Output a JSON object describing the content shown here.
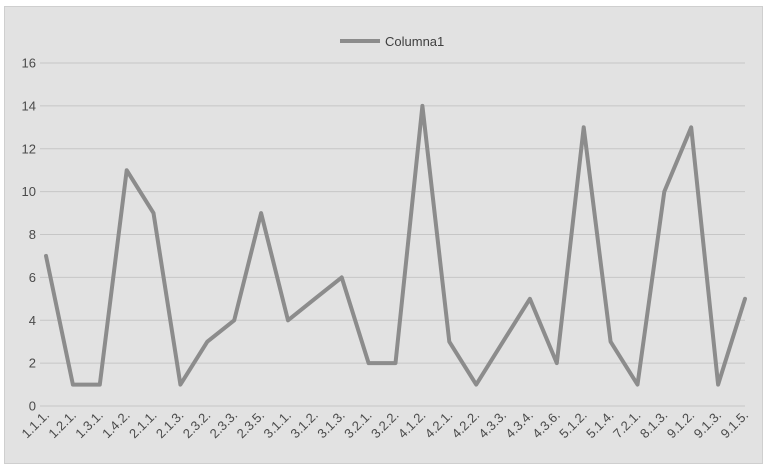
{
  "chart_data": {
    "type": "line",
    "categories": [
      "1.1.1.",
      "1.2.1.",
      "1.3.1.",
      "1.4.2.",
      "2.1.1.",
      "2.1.3.",
      "2.3.2.",
      "2.3.3.",
      "2.3.5.",
      "3.1.1.",
      "3.1.2.",
      "3.1.3.",
      "3.2.1.",
      "3.2.2.",
      "4.1.2.",
      "4.2.1.",
      "4.2.2.",
      "4.3.3.",
      "4.3.4.",
      "4.3.6.",
      "5.1.2.",
      "5.1.4.",
      "7.2.1.",
      "8.1.3.",
      "9.1.2.",
      "9.1.3.",
      "9.1.5."
    ],
    "series": [
      {
        "name": "Columna1",
        "values": [
          7,
          1,
          1,
          11,
          9,
          1,
          3,
          4,
          9,
          4,
          5,
          6,
          2,
          2,
          14,
          3,
          1,
          3,
          5,
          2,
          13,
          3,
          1,
          10,
          13,
          1,
          5
        ]
      }
    ],
    "title": "",
    "xlabel": "",
    "ylabel": "",
    "ylim": [
      0,
      16
    ],
    "yticks": [
      0,
      2,
      4,
      6,
      8,
      10,
      12,
      14,
      16
    ],
    "grid": true,
    "legend": "top-center",
    "colors": {
      "line": "#8c8c8c",
      "grid": "#c6c6c6",
      "background": "#e2e2e2",
      "text": "#4a4a4a"
    }
  }
}
